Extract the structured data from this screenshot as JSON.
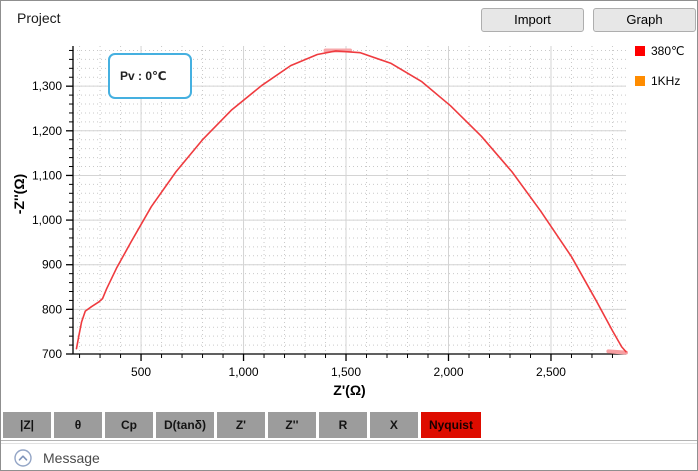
{
  "window": {
    "title": "Project"
  },
  "toolbar": {
    "import_label": "Import",
    "graph_label": "Graph"
  },
  "annotation": {
    "text": "Pv :  0℃",
    "border_color": "#45b0e0"
  },
  "legend": {
    "items": [
      {
        "label": "380℃",
        "color": "#ff0000"
      },
      {
        "label": "1KHz",
        "color": "#ff8c00"
      }
    ]
  },
  "tabs": {
    "items": [
      "|Z|",
      "θ",
      "Cp",
      "D(tanδ)",
      "Z'",
      "Z''",
      "R",
      "X",
      "Nyquist"
    ],
    "active": "Nyquist",
    "active_color": "#de0c00",
    "inactive_color": "#9c9c9c"
  },
  "message_bar": {
    "label": "Message"
  },
  "chart_data": {
    "type": "line",
    "title": "",
    "xlabel": "Z'(Ω)",
    "ylabel": "-Z''(Ω)",
    "xlim": [
      168,
      2866
    ],
    "ylim": [
      700,
      1390
    ],
    "x_major_ticks": [
      500,
      1000,
      1500,
      2000,
      2500
    ],
    "x_tick_labels": [
      "500",
      "1,000",
      "1,500",
      "2,000",
      "2,500"
    ],
    "x_minor_step": 100,
    "y_major_ticks": [
      700,
      800,
      900,
      1000,
      1100,
      1200,
      1300
    ],
    "y_tick_labels": [
      "700",
      "800",
      "900",
      "1,000",
      "1,100",
      "1,200",
      "1,300"
    ],
    "y_minor_step": 20,
    "grid": true,
    "legend_position": "top-right",
    "series": [
      {
        "name": "380℃",
        "color": "#ef3b3f",
        "points": [
          [
            185,
            712
          ],
          [
            197,
            742
          ],
          [
            210,
            772
          ],
          [
            228,
            796
          ],
          [
            258,
            806
          ],
          [
            292,
            816
          ],
          [
            312,
            824
          ],
          [
            332,
            846
          ],
          [
            380,
            892
          ],
          [
            450,
            950
          ],
          [
            550,
            1030
          ],
          [
            670,
            1108
          ],
          [
            800,
            1180
          ],
          [
            940,
            1246
          ],
          [
            1090,
            1302
          ],
          [
            1230,
            1346
          ],
          [
            1360,
            1371
          ],
          [
            1450,
            1379
          ],
          [
            1570,
            1375
          ],
          [
            1720,
            1351
          ],
          [
            1870,
            1310
          ],
          [
            2010,
            1256
          ],
          [
            2160,
            1188
          ],
          [
            2310,
            1108
          ],
          [
            2450,
            1020
          ],
          [
            2600,
            918
          ],
          [
            2720,
            820
          ],
          [
            2800,
            752
          ],
          [
            2845,
            716
          ],
          [
            2866,
            705
          ]
        ]
      }
    ],
    "highlights": [
      {
        "name": "end-cluster",
        "color": "#f79fa2",
        "points": [
          [
            2780,
            706
          ],
          [
            2866,
            703
          ]
        ]
      },
      {
        "name": "peak-cluster",
        "color": "#f7a8ab",
        "points": [
          [
            1400,
            1380
          ],
          [
            1520,
            1380
          ]
        ]
      }
    ]
  }
}
